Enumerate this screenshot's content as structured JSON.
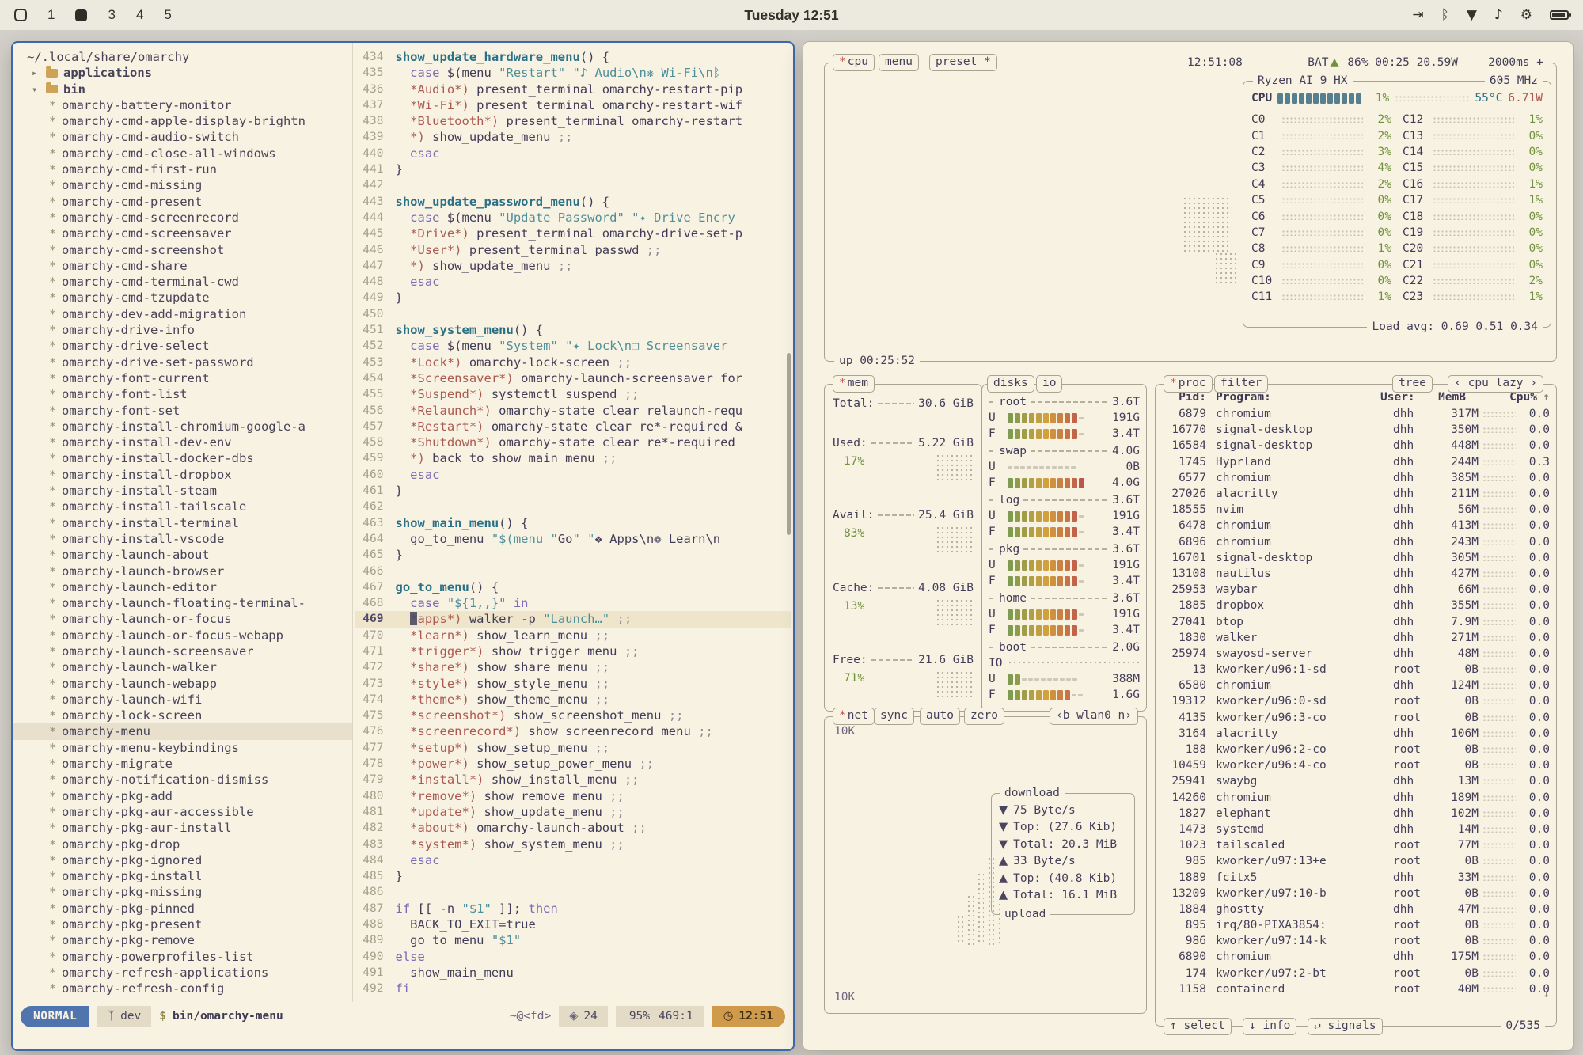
{
  "topbar": {
    "workspaces": [
      {
        "label": "1",
        "focused": false
      },
      {
        "label": "",
        "focused": true
      },
      {
        "label": "3",
        "focused": false
      },
      {
        "label": "4",
        "focused": false
      },
      {
        "label": "5",
        "focused": false
      }
    ],
    "clock": "Tuesday 12:51",
    "tray": [
      {
        "name": "screenshare-icon",
        "glyph": "⇥"
      },
      {
        "name": "bluetooth-icon",
        "glyph": "ᛒ"
      },
      {
        "name": "wifi-icon",
        "glyph": "▼"
      },
      {
        "name": "volume-icon",
        "glyph": "♪"
      },
      {
        "name": "record-icon",
        "glyph": "⚙"
      },
      {
        "name": "battery-icon",
        "glyph": ""
      }
    ]
  },
  "editor": {
    "tree": {
      "root": "~/.local/share/omarchy",
      "selected": "omarchy-menu",
      "items": [
        {
          "type": "folder",
          "label": "applications",
          "expanded": false
        },
        {
          "type": "folder",
          "label": "bin",
          "expanded": true
        },
        {
          "type": "file",
          "label": "omarchy-battery-monitor"
        },
        {
          "type": "file",
          "label": "omarchy-cmd-apple-display-brightn"
        },
        {
          "type": "file",
          "label": "omarchy-cmd-audio-switch"
        },
        {
          "type": "file",
          "label": "omarchy-cmd-close-all-windows"
        },
        {
          "type": "file",
          "label": "omarchy-cmd-first-run"
        },
        {
          "type": "file",
          "label": "omarchy-cmd-missing"
        },
        {
          "type": "file",
          "label": "omarchy-cmd-present"
        },
        {
          "type": "file",
          "label": "omarchy-cmd-screenrecord"
        },
        {
          "type": "file",
          "label": "omarchy-cmd-screensaver"
        },
        {
          "type": "file",
          "label": "omarchy-cmd-screenshot"
        },
        {
          "type": "file",
          "label": "omarchy-cmd-share"
        },
        {
          "type": "file",
          "label": "omarchy-cmd-terminal-cwd"
        },
        {
          "type": "file",
          "label": "omarchy-cmd-tzupdate"
        },
        {
          "type": "file",
          "label": "omarchy-dev-add-migration"
        },
        {
          "type": "file",
          "label": "omarchy-drive-info"
        },
        {
          "type": "file",
          "label": "omarchy-drive-select"
        },
        {
          "type": "file",
          "label": "omarchy-drive-set-password"
        },
        {
          "type": "file",
          "label": "omarchy-font-current"
        },
        {
          "type": "file",
          "label": "omarchy-font-list"
        },
        {
          "type": "file",
          "label": "omarchy-font-set"
        },
        {
          "type": "file",
          "label": "omarchy-install-chromium-google-a"
        },
        {
          "type": "file",
          "label": "omarchy-install-dev-env"
        },
        {
          "type": "file",
          "label": "omarchy-install-docker-dbs"
        },
        {
          "type": "file",
          "label": "omarchy-install-dropbox"
        },
        {
          "type": "file",
          "label": "omarchy-install-steam"
        },
        {
          "type": "file",
          "label": "omarchy-install-tailscale"
        },
        {
          "type": "file",
          "label": "omarchy-install-terminal"
        },
        {
          "type": "file",
          "label": "omarchy-install-vscode"
        },
        {
          "type": "file",
          "label": "omarchy-launch-about"
        },
        {
          "type": "file",
          "label": "omarchy-launch-browser"
        },
        {
          "type": "file",
          "label": "omarchy-launch-editor"
        },
        {
          "type": "file",
          "label": "omarchy-launch-floating-terminal-"
        },
        {
          "type": "file",
          "label": "omarchy-launch-or-focus"
        },
        {
          "type": "file",
          "label": "omarchy-launch-or-focus-webapp"
        },
        {
          "type": "file",
          "label": "omarchy-launch-screensaver"
        },
        {
          "type": "file",
          "label": "omarchy-launch-walker"
        },
        {
          "type": "file",
          "label": "omarchy-launch-webapp"
        },
        {
          "type": "file",
          "label": "omarchy-launch-wifi"
        },
        {
          "type": "file",
          "label": "omarchy-lock-screen"
        },
        {
          "type": "file",
          "label": "omarchy-menu"
        },
        {
          "type": "file",
          "label": "omarchy-menu-keybindings"
        },
        {
          "type": "file",
          "label": "omarchy-migrate"
        },
        {
          "type": "file",
          "label": "omarchy-notification-dismiss"
        },
        {
          "type": "file",
          "label": "omarchy-pkg-add"
        },
        {
          "type": "file",
          "label": "omarchy-pkg-aur-accessible"
        },
        {
          "type": "file",
          "label": "omarchy-pkg-aur-install"
        },
        {
          "type": "file",
          "label": "omarchy-pkg-drop"
        },
        {
          "type": "file",
          "label": "omarchy-pkg-ignored"
        },
        {
          "type": "file",
          "label": "omarchy-pkg-install"
        },
        {
          "type": "file",
          "label": "omarchy-pkg-missing"
        },
        {
          "type": "file",
          "label": "omarchy-pkg-pinned"
        },
        {
          "type": "file",
          "label": "omarchy-pkg-present"
        },
        {
          "type": "file",
          "label": "omarchy-pkg-remove"
        },
        {
          "type": "file",
          "label": "omarchy-powerprofiles-list"
        },
        {
          "type": "file",
          "label": "omarchy-refresh-applications"
        },
        {
          "type": "file",
          "label": "omarchy-refresh-config"
        }
      ]
    },
    "code": {
      "first_line": 434,
      "current_line": 469,
      "lines": [
        "show_update_hardware_menu() {",
        "  case $(menu \"Restart\" \"♪ Audio\\n❋ Wi-Fi\\nᛒ",
        "  *Audio*) present_terminal omarchy-restart-pip",
        "  *Wi-Fi*) present_terminal omarchy-restart-wif",
        "  *Bluetooth*) present_terminal omarchy-restart",
        "  *) show_update_menu ;;",
        "  esac",
        "}",
        "",
        "show_update_password_menu() {",
        "  case $(menu \"Update Password\" \"✦ Drive Encry",
        "  *Drive*) present_terminal omarchy-drive-set-p",
        "  *User*) present_terminal passwd ;;",
        "  *) show_update_menu ;;",
        "  esac",
        "}",
        "",
        "show_system_menu() {",
        "  case $(menu \"System\" \"✦ Lock\\n❐ Screensaver",
        "  *Lock*) omarchy-lock-screen ;;",
        "  *Screensaver*) omarchy-launch-screensaver for",
        "  *Suspend*) systemctl suspend ;;",
        "  *Relaunch*) omarchy-state clear relaunch-requ",
        "  *Restart*) omarchy-state clear re*-required &",
        "  *Shutdown*) omarchy-state clear re*-required",
        "  *) back_to show_main_menu ;;",
        "  esac",
        "}",
        "",
        "show_main_menu() {",
        "  go_to_menu \"$(menu \"Go\" \"❖ Apps\\n❁ Learn\\n",
        "}",
        "",
        "go_to_menu() {",
        "  case \"${1,,}\" in",
        "  *apps*) walker -p \"Launch…\" ;;",
        "  *learn*) show_learn_menu ;;",
        "  *trigger*) show_trigger_menu ;;",
        "  *share*) show_share_menu ;;",
        "  *style*) show_style_menu ;;",
        "  *theme*) show_theme_menu ;;",
        "  *screenshot*) show_screenshot_menu ;;",
        "  *screenrecord*) show_screenrecord_menu ;;",
        "  *setup*) show_setup_menu ;;",
        "  *power*) show_setup_power_menu ;;",
        "  *install*) show_install_menu ;;",
        "  *remove*) show_remove_menu ;;",
        "  *update*) show_update_menu ;;",
        "  *about*) omarchy-launch-about ;;",
        "  *system*) show_system_menu ;;",
        "  esac",
        "}",
        "",
        "if [[ -n \"$1\" ]]; then",
        "  BACK_TO_EXIT=true",
        "  go_to_menu \"$1\"",
        "else",
        "  show_main_menu",
        "fi"
      ]
    },
    "statusline": {
      "mode": "NORMAL",
      "branch": "dev",
      "file_prefix": "$",
      "file": "bin/omarchy-menu",
      "host": "~@<fd>",
      "badge": "24",
      "progress": "95%",
      "position": "469:1",
      "time": "12:51"
    }
  },
  "btop": {
    "labels": {
      "cpu": "cpu",
      "menu": "menu",
      "preset": "preset *",
      "clock": "12:51:08",
      "battery_prefix": "BAT",
      "battery_rest": " 86% 00:25 20.59W",
      "interval": "2000ms +",
      "uptime": "up 00:25:52"
    },
    "cpu": {
      "model": "Ryzen AI 9 HX",
      "freq": "605 MHz",
      "total": {
        "label": "CPU",
        "pct": "1%",
        "temp": "55°C",
        "power": "6.71W",
        "bar": 1
      },
      "cores": [
        {
          "n": "C0",
          "p": "2%"
        },
        {
          "n": "C1",
          "p": "2%"
        },
        {
          "n": "C2",
          "p": "3%"
        },
        {
          "n": "C3",
          "p": "4%"
        },
        {
          "n": "C4",
          "p": "2%"
        },
        {
          "n": "C5",
          "p": "0%"
        },
        {
          "n": "C6",
          "p": "0%"
        },
        {
          "n": "C7",
          "p": "0%"
        },
        {
          "n": "C8",
          "p": "1%"
        },
        {
          "n": "C9",
          "p": "0%"
        },
        {
          "n": "C10",
          "p": "0%"
        },
        {
          "n": "C11",
          "p": "1%"
        },
        {
          "n": "C12",
          "p": "1%"
        },
        {
          "n": "C13",
          "p": "0%"
        },
        {
          "n": "C14",
          "p": "0%"
        },
        {
          "n": "C15",
          "p": "0%"
        },
        {
          "n": "C16",
          "p": "1%"
        },
        {
          "n": "C17",
          "p": "1%"
        },
        {
          "n": "C18",
          "p": "0%"
        },
        {
          "n": "C19",
          "p": "0%"
        },
        {
          "n": "C20",
          "p": "0%"
        },
        {
          "n": "C21",
          "p": "0%"
        },
        {
          "n": "C22",
          "p": "2%"
        },
        {
          "n": "C23",
          "p": "1%"
        }
      ],
      "load_avg": "Load avg: 0.69 0.51 0.34"
    },
    "mem": {
      "label": "mem",
      "total": {
        "label": "Total:",
        "value": "30.6 GiB"
      },
      "stats": [
        {
          "label": "Used:",
          "value": "5.22 GiB",
          "pct": "17%"
        },
        {
          "label": "Avail:",
          "value": "25.4 GiB",
          "pct": "83%"
        },
        {
          "label": "Cache:",
          "value": "4.08 GiB",
          "pct": "13%"
        },
        {
          "label": "Free:",
          "value": "21.6 GiB",
          "pct": "71%"
        }
      ]
    },
    "disks": {
      "tabs": [
        "disks",
        "io"
      ],
      "list": [
        {
          "name": "root",
          "size": "3.6T",
          "used": "191G",
          "free": "3.4T",
          "ubar": 0.9,
          "fbar": 0.95,
          "io": false
        },
        {
          "name": "swap",
          "size": "4.0G",
          "used": "0B",
          "free": "4.0G",
          "ubar": 0,
          "fbar": 1,
          "io": false
        },
        {
          "name": "log",
          "size": "3.6T",
          "used": "191G",
          "free": "3.4T",
          "ubar": 0.9,
          "fbar": 0.95,
          "io": false
        },
        {
          "name": "pkg",
          "size": "3.6T",
          "used": "191G",
          "free": "3.4T",
          "ubar": 0.9,
          "fbar": 0.95,
          "io": false
        },
        {
          "name": "home",
          "size": "3.6T",
          "used": "191G",
          "free": "3.4T",
          "ubar": 0.9,
          "fbar": 0.95,
          "io": false
        },
        {
          "name": "boot",
          "size": "2.0G",
          "used": "388M",
          "free": "1.6G",
          "ubar": 0.2,
          "fbar": 0.8,
          "io": true
        }
      ]
    },
    "net": {
      "label": "net",
      "tabs": [
        "sync",
        "auto",
        "zero"
      ],
      "iface": "‹b wlan0 n›",
      "scale_top": "10K",
      "scale_bottom": "10K",
      "download_label": "download",
      "upload_label": "upload",
      "rows": [
        {
          "dir": "▼",
          "text": "75 Byte/s"
        },
        {
          "dir": "▼",
          "text": "Top: (27.6 Kib)"
        },
        {
          "dir": "▼",
          "text": "Total: 20.3 MiB"
        },
        {
          "dir": "▲",
          "text": "33 Byte/s"
        },
        {
          "dir": "▲",
          "text": "Top: (40.8 Kib)"
        },
        {
          "dir": "▲",
          "text": "Total: 16.1 MiB"
        }
      ]
    },
    "proc": {
      "label": "proc",
      "filter_label": "filter",
      "tree_label": "tree",
      "sort_label": "‹ cpu lazy ›",
      "columns": [
        "Pid:",
        "Program:",
        "User:",
        "MemB",
        "Cpu%",
        "↑"
      ],
      "rows": [
        [
          "6879",
          "chromium",
          "dhh",
          "317M",
          "0.0"
        ],
        [
          "16770",
          "signal-desktop",
          "dhh",
          "350M",
          "0.0"
        ],
        [
          "16584",
          "signal-desktop",
          "dhh",
          "448M",
          "0.0"
        ],
        [
          "1745",
          "Hyprland",
          "dhh",
          "244M",
          "0.3"
        ],
        [
          "6577",
          "chromium",
          "dhh",
          "385M",
          "0.0"
        ],
        [
          "27026",
          "alacritty",
          "dhh",
          "211M",
          "0.0"
        ],
        [
          "18555",
          "nvim",
          "dhh",
          "56M",
          "0.0"
        ],
        [
          "6478",
          "chromium",
          "dhh",
          "413M",
          "0.0"
        ],
        [
          "6896",
          "chromium",
          "dhh",
          "243M",
          "0.0"
        ],
        [
          "16701",
          "signal-desktop",
          "dhh",
          "305M",
          "0.0"
        ],
        [
          "13108",
          "nautilus",
          "dhh",
          "427M",
          "0.0"
        ],
        [
          "25953",
          "waybar",
          "dhh",
          "66M",
          "0.0"
        ],
        [
          "1885",
          "dropbox",
          "dhh",
          "355M",
          "0.0"
        ],
        [
          "27041",
          "btop",
          "dhh",
          "7.9M",
          "0.0"
        ],
        [
          "1830",
          "walker",
          "dhh",
          "271M",
          "0.0"
        ],
        [
          "25974",
          "swayosd-server",
          "dhh",
          "48M",
          "0.0"
        ],
        [
          "13",
          "kworker/u96:1-sd",
          "root",
          "0B",
          "0.0"
        ],
        [
          "6580",
          "chromium",
          "dhh",
          "124M",
          "0.0"
        ],
        [
          "19312",
          "kworker/u96:0-sd",
          "root",
          "0B",
          "0.0"
        ],
        [
          "4135",
          "kworker/u96:3-co",
          "root",
          "0B",
          "0.0"
        ],
        [
          "3164",
          "alacritty",
          "dhh",
          "106M",
          "0.0"
        ],
        [
          "188",
          "kworker/u96:2-co",
          "root",
          "0B",
          "0.0"
        ],
        [
          "10459",
          "kworker/u96:4-co",
          "root",
          "0B",
          "0.0"
        ],
        [
          "25941",
          "swaybg",
          "dhh",
          "13M",
          "0.0"
        ],
        [
          "14260",
          "chromium",
          "dhh",
          "189M",
          "0.0"
        ],
        [
          "1827",
          "elephant",
          "dhh",
          "102M",
          "0.0"
        ],
        [
          "1473",
          "systemd",
          "dhh",
          "14M",
          "0.0"
        ],
        [
          "1023",
          "tailscaled",
          "root",
          "77M",
          "0.0"
        ],
        [
          "985",
          "kworker/u97:13+e",
          "root",
          "0B",
          "0.0"
        ],
        [
          "1889",
          "fcitx5",
          "dhh",
          "33M",
          "0.0"
        ],
        [
          "13209",
          "kworker/u97:10-b",
          "root",
          "0B",
          "0.0"
        ],
        [
          "1884",
          "ghostty",
          "dhh",
          "47M",
          "0.0"
        ],
        [
          "895",
          "irq/80-PIXA3854:",
          "root",
          "0B",
          "0.0"
        ],
        [
          "986",
          "kworker/u97:14-k",
          "root",
          "0B",
          "0.0"
        ],
        [
          "6890",
          "chromium",
          "dhh",
          "175M",
          "0.0"
        ],
        [
          "174",
          "kworker/u97:2-bt",
          "root",
          "0B",
          "0.0"
        ],
        [
          "1158",
          "containerd",
          "root",
          "40M",
          "0.0"
        ]
      ],
      "footer": [
        "↑ select",
        "↓ info",
        "↵ signals"
      ],
      "selected": "0/535"
    }
  }
}
